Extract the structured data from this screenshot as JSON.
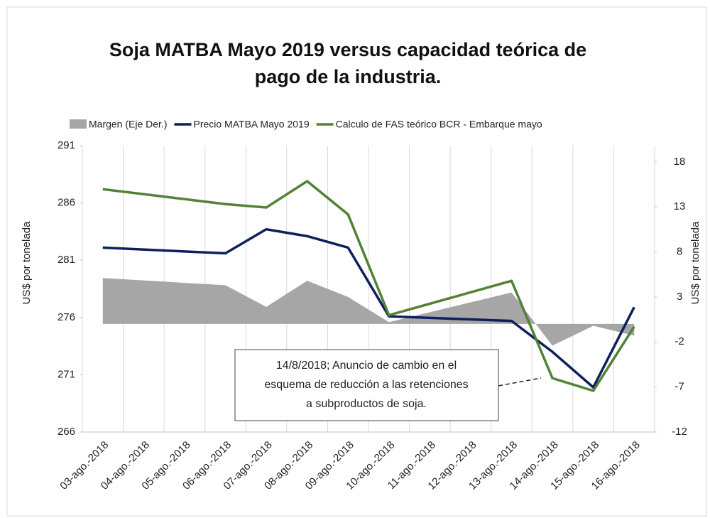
{
  "chart_data": {
    "type": "line",
    "title": [
      "Soja MATBA Mayo 2019 versus capacidad teórica de",
      "pago de la industria."
    ],
    "y_label": "US$ por tonelada",
    "y2_label": "US$ por tonelada",
    "categories": [
      "03-ago.-2018",
      "04-ago.-2018",
      "05-ago.-2018",
      "06-ago.-2018",
      "07-ago.-2018",
      "08-ago.-2018",
      "09-ago.-2018",
      "10-ago.-2018",
      "11-ago.-2018",
      "12-ago.-2018",
      "13-ago.-2018",
      "14-ago.-2018",
      "15-ago.-2018",
      "16-ago.-2018"
    ],
    "ylim": [
      266,
      291
    ],
    "yticks": [
      266,
      271,
      276,
      281,
      286,
      291
    ],
    "y2lim": [
      -12,
      19.8
    ],
    "y2ticks": [
      -12,
      -7,
      -2,
      3,
      8,
      13,
      18
    ],
    "series": [
      {
        "name": "Margen (Eje Der.)",
        "kind": "area",
        "axis": "y2",
        "color": "#a6a6a6",
        "x": [
          "03-ago.-2018",
          "06-ago.-2018",
          "07-ago.-2018",
          "08-ago.-2018",
          "09-ago.-2018",
          "10-ago.-2018",
          "13-ago.-2018",
          "14-ago.-2018",
          "15-ago.-2018",
          "16-ago.-2018"
        ],
        "values": [
          5.1,
          4.3,
          1.9,
          4.8,
          3.0,
          0.2,
          3.5,
          -2.4,
          -0.2,
          -1.3
        ]
      },
      {
        "name": "Precio MATBA Mayo 2019",
        "kind": "line",
        "color": "#0d1f5c",
        "x": [
          "03-ago.-2018",
          "06-ago.-2018",
          "07-ago.-2018",
          "08-ago.-2018",
          "09-ago.-2018",
          "10-ago.-2018",
          "13-ago.-2018",
          "14-ago.-2018",
          "15-ago.-2018",
          "16-ago.-2018"
        ],
        "values": [
          282.1,
          281.6,
          283.7,
          283.1,
          282.1,
          276.1,
          275.7,
          273.0,
          269.9,
          276.9
        ]
      },
      {
        "name": "Calculo de FAS teórico BCR - Embarque mayo",
        "kind": "line",
        "color": "#538135",
        "x": [
          "03-ago.-2018",
          "06-ago.-2018",
          "07-ago.-2018",
          "08-ago.-2018",
          "09-ago.-2018",
          "10-ago.-2018",
          "13-ago.-2018",
          "14-ago.-2018",
          "15-ago.-2018",
          "16-ago.-2018"
        ],
        "values": [
          287.2,
          285.9,
          285.6,
          287.9,
          285.0,
          276.2,
          279.2,
          270.7,
          269.6,
          275.2
        ]
      }
    ],
    "annotation": [
      "14/8/2018; Anuncio de cambio en el",
      "esquema de reducción a las retenciones",
      "a subproductos de soja."
    ]
  }
}
